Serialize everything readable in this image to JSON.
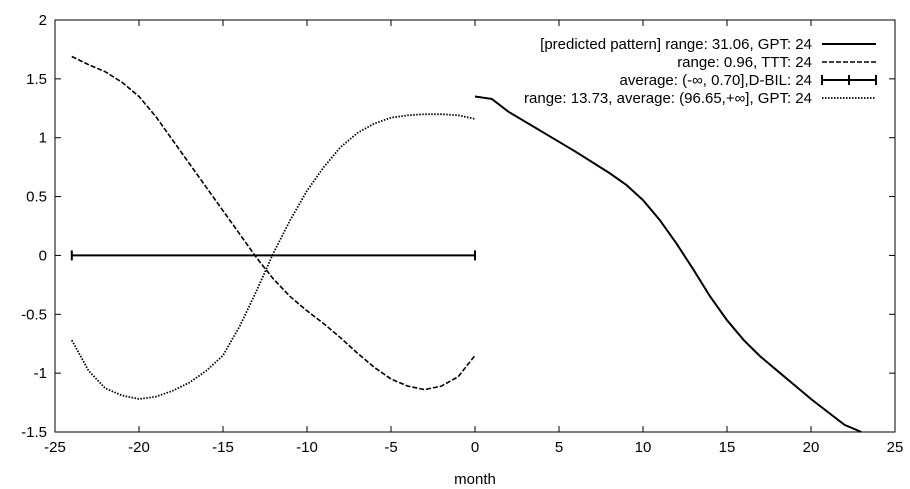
{
  "chart_data": {
    "type": "line",
    "title": "",
    "xlabel": "month",
    "ylabel": "",
    "xlim": [
      -25,
      25
    ],
    "ylim": [
      -1.5,
      2
    ],
    "x_ticks": [
      -25,
      -20,
      -15,
      -10,
      -5,
      0,
      5,
      10,
      15,
      20,
      25
    ],
    "y_ticks": [
      -1.5,
      -1,
      -0.5,
      0,
      0.5,
      1,
      1.5,
      2
    ],
    "y_tick_labels": [
      "-1.5",
      "-1",
      "-0.5",
      "0",
      "0.5",
      "1",
      "1.5",
      "2"
    ],
    "grid": false,
    "legend_position": "top-right",
    "series": [
      {
        "name": "[predicted pattern] range: 31.06, GPT: 24",
        "style": "solid",
        "x": [
          0,
          1,
          2,
          4,
          6,
          8,
          9,
          10,
          11,
          12,
          13,
          14,
          15,
          16,
          17,
          18,
          19,
          20,
          21,
          22,
          23
        ],
        "y": [
          1.35,
          1.33,
          1.22,
          1.05,
          0.88,
          0.7,
          0.6,
          0.47,
          0.3,
          0.1,
          -0.12,
          -0.35,
          -0.55,
          -0.72,
          -0.86,
          -0.98,
          -1.1,
          -1.22,
          -1.33,
          -1.44,
          -1.5
        ]
      },
      {
        "name": "range:  0.96, TTT: 24",
        "style": "dashed",
        "x": [
          -24,
          -23,
          -22,
          -21,
          -20,
          -19,
          -18,
          -17,
          -16,
          -15,
          -14,
          -13,
          -12,
          -11,
          -10,
          -9,
          -8,
          -7,
          -6,
          -5,
          -4,
          -3,
          -2,
          -1,
          0
        ],
        "y": [
          1.69,
          1.62,
          1.56,
          1.47,
          1.35,
          1.18,
          0.98,
          0.78,
          0.58,
          0.38,
          0.18,
          -0.02,
          -0.2,
          -0.35,
          -0.47,
          -0.58,
          -0.7,
          -0.83,
          -0.95,
          -1.05,
          -1.11,
          -1.14,
          -1.11,
          -1.03,
          -0.85
        ]
      },
      {
        "name": "average: (-∞, 0.70],D-BIL: 24",
        "style": "errorbar",
        "x": [
          -24,
          0
        ],
        "y": [
          0,
          0
        ]
      },
      {
        "name": "range: 13.73, average: (96.65,+∞], GPT: 24",
        "style": "dotted",
        "x": [
          -24,
          -23,
          -22,
          -21,
          -20,
          -19,
          -18,
          -17,
          -16,
          -15,
          -14,
          -13,
          -12,
          -11,
          -10,
          -9,
          -8,
          -7,
          -6,
          -5,
          -4,
          -3,
          -2,
          -1,
          0
        ],
        "y": [
          -0.72,
          -0.98,
          -1.13,
          -1.19,
          -1.22,
          -1.2,
          -1.15,
          -1.08,
          -0.98,
          -0.85,
          -0.6,
          -0.3,
          0.02,
          0.3,
          0.55,
          0.75,
          0.92,
          1.04,
          1.12,
          1.17,
          1.19,
          1.2,
          1.2,
          1.19,
          1.16
        ]
      }
    ]
  }
}
